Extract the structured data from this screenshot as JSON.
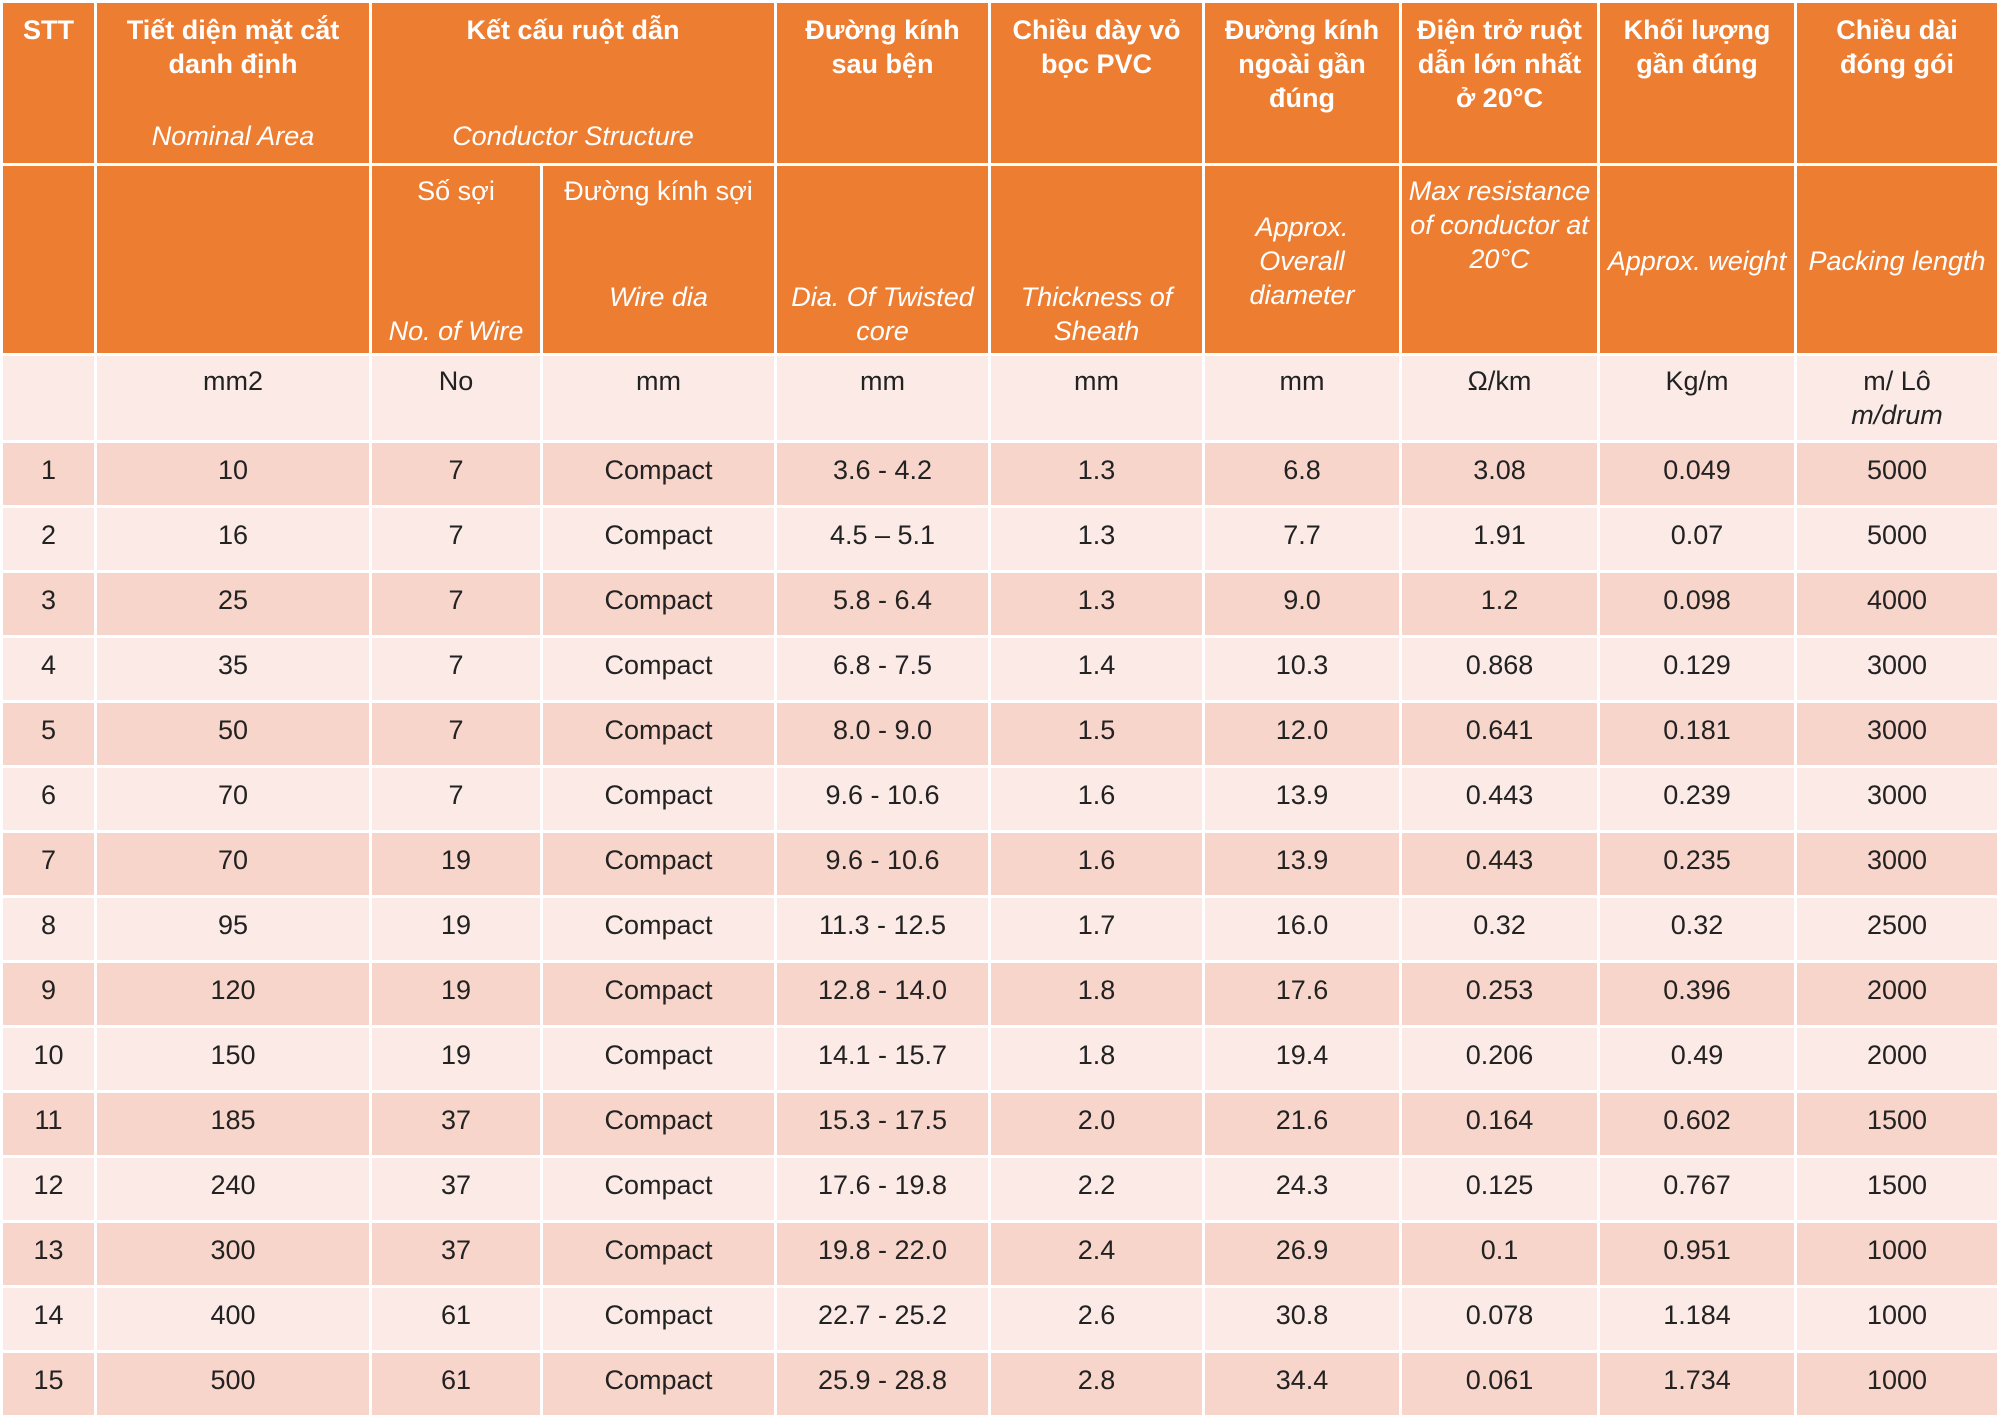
{
  "header_top": {
    "stt": "STT",
    "nominal_area_vi": "Tiết diện mặt cắt danh định",
    "nominal_area_en": "Nominal Area",
    "conductor_vi": "Kết cấu ruột dẫn",
    "conductor_en": "Conductor Structure",
    "twisted_vi": "Đường kính sau bện",
    "sheath_vi": "Chiều dày vỏ bọc PVC",
    "overall_vi": "Đường kính ngoài gần đúng",
    "resistance_vi": "Điện trở ruột dẫn lớn nhất ở 20°C",
    "weight_vi": "Khối lượng gần đúng",
    "packing_vi": "Chiều dài đóng gói"
  },
  "header_sub": {
    "wires_vi": "Số sợi",
    "wires_en": "No. of Wire",
    "wire_dia_vi": "Đường kính sợi",
    "wire_dia_en": "Wire dia",
    "twisted_en": "Dia. Of Twisted core",
    "sheath_en": "Thickness of Sheath",
    "overall_en": "Approx. Overall diameter",
    "resistance_en": "Max resistance of conductor at 20°C",
    "weight_en": "Approx. weight",
    "packing_en": "Packing length"
  },
  "units": {
    "stt": "",
    "area": "mm2",
    "wires": "No",
    "wire_dia": "mm",
    "twisted": "mm",
    "sheath": "mm",
    "overall": "mm",
    "resistance": "Ω/km",
    "weight": "Kg/m",
    "packing_vi": "m/ Lô",
    "packing_en": "m/drum"
  },
  "rows": [
    {
      "stt": "1",
      "area": "10",
      "wires": "7",
      "dia": "Compact",
      "twisted": "3.6 - 4.2",
      "sheath": "1.3",
      "overall": "6.8",
      "res": "3.08",
      "weight": "0.049",
      "packing": "5000"
    },
    {
      "stt": "2",
      "area": "16",
      "wires": "7",
      "dia": "Compact",
      "twisted": "4.5 – 5.1",
      "sheath": "1.3",
      "overall": "7.7",
      "res": "1.91",
      "weight": "0.07",
      "packing": "5000"
    },
    {
      "stt": "3",
      "area": "25",
      "wires": "7",
      "dia": "Compact",
      "twisted": "5.8 - 6.4",
      "sheath": "1.3",
      "overall": "9.0",
      "res": "1.2",
      "weight": "0.098",
      "packing": "4000"
    },
    {
      "stt": "4",
      "area": "35",
      "wires": "7",
      "dia": "Compact",
      "twisted": "6.8 - 7.5",
      "sheath": "1.4",
      "overall": "10.3",
      "res": "0.868",
      "weight": "0.129",
      "packing": "3000"
    },
    {
      "stt": "5",
      "area": "50",
      "wires": "7",
      "dia": "Compact",
      "twisted": "8.0 - 9.0",
      "sheath": "1.5",
      "overall": "12.0",
      "res": "0.641",
      "weight": "0.181",
      "packing": "3000"
    },
    {
      "stt": "6",
      "area": "70",
      "wires": "7",
      "dia": "Compact",
      "twisted": "9.6 - 10.6",
      "sheath": "1.6",
      "overall": "13.9",
      "res": "0.443",
      "weight": "0.239",
      "packing": "3000"
    },
    {
      "stt": "7",
      "area": "70",
      "wires": "19",
      "dia": "Compact",
      "twisted": "9.6 - 10.6",
      "sheath": "1.6",
      "overall": "13.9",
      "res": "0.443",
      "weight": "0.235",
      "packing": "3000"
    },
    {
      "stt": "8",
      "area": "95",
      "wires": "19",
      "dia": "Compact",
      "twisted": "11.3 - 12.5",
      "sheath": "1.7",
      "overall": "16.0",
      "res": "0.32",
      "weight": "0.32",
      "packing": "2500"
    },
    {
      "stt": "9",
      "area": "120",
      "wires": "19",
      "dia": "Compact",
      "twisted": "12.8 - 14.0",
      "sheath": "1.8",
      "overall": "17.6",
      "res": "0.253",
      "weight": "0.396",
      "packing": "2000"
    },
    {
      "stt": "10",
      "area": "150",
      "wires": "19",
      "dia": "Compact",
      "twisted": "14.1 - 15.7",
      "sheath": "1.8",
      "overall": "19.4",
      "res": "0.206",
      "weight": "0.49",
      "packing": "2000"
    },
    {
      "stt": "11",
      "area": "185",
      "wires": "37",
      "dia": "Compact",
      "twisted": "15.3 - 17.5",
      "sheath": "2.0",
      "overall": "21.6",
      "res": "0.164",
      "weight": "0.602",
      "packing": "1500"
    },
    {
      "stt": "12",
      "area": "240",
      "wires": "37",
      "dia": "Compact",
      "twisted": "17.6 - 19.8",
      "sheath": "2.2",
      "overall": "24.3",
      "res": "0.125",
      "weight": "0.767",
      "packing": "1500"
    },
    {
      "stt": "13",
      "area": "300",
      "wires": "37",
      "dia": "Compact",
      "twisted": "19.8 - 22.0",
      "sheath": "2.4",
      "overall": "26.9",
      "res": "0.1",
      "weight": "0.951",
      "packing": "1000"
    },
    {
      "stt": "14",
      "area": "400",
      "wires": "61",
      "dia": "Compact",
      "twisted": "22.7 - 25.2",
      "sheath": "2.6",
      "overall": "30.8",
      "res": "0.078",
      "weight": "1.184",
      "packing": "1000"
    },
    {
      "stt": "15",
      "area": "500",
      "wires": "61",
      "dia": "Compact",
      "twisted": "25.9 - 28.8",
      "sheath": "2.8",
      "overall": "34.4",
      "res": "0.061",
      "weight": "1.734",
      "packing": "1000"
    }
  ]
}
